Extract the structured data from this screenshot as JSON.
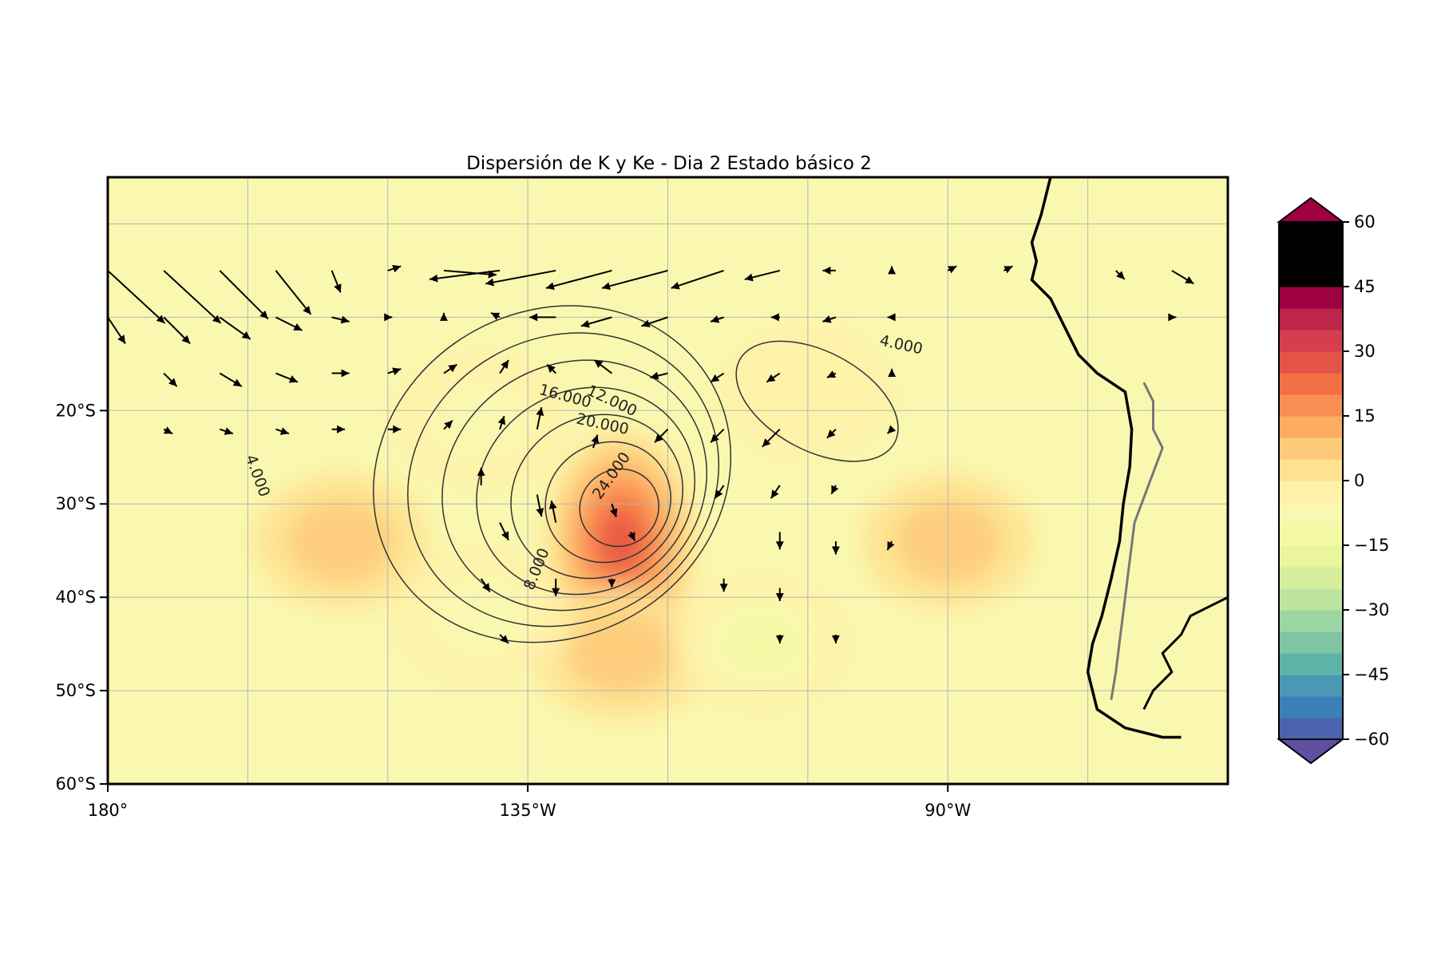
{
  "chart_data": {
    "type": "heatmap",
    "title": "Dispersión de K y Ke - Dia 2 Estado básico 2",
    "x_range": [
      -180,
      -60
    ],
    "y_range": [
      -60,
      5
    ],
    "x_ticks": [
      {
        "v": -180,
        "label": "180°"
      },
      {
        "v": -135,
        "label": "135°W"
      },
      {
        "v": -90,
        "label": "90°W"
      }
    ],
    "y_ticks": [
      {
        "v": -20,
        "label": "20°S"
      },
      {
        "v": -30,
        "label": "30°S"
      },
      {
        "v": -40,
        "label": "40°S"
      },
      {
        "v": -50,
        "label": "50°S"
      },
      {
        "v": -60,
        "label": "60°S"
      }
    ],
    "gridlines_lon": [
      -165,
      -150,
      -135,
      -120,
      -105,
      -90,
      -75
    ],
    "gridlines_lat": [
      0,
      -10,
      -20,
      -30,
      -40,
      -50
    ],
    "colorbar": {
      "min": -60,
      "max": 60,
      "step": 5,
      "extend": "both",
      "colormap": "Spectral_r",
      "tick_labels": [
        "60",
        "45",
        "30",
        "15",
        "0",
        "−15",
        "−30",
        "−45",
        "−60"
      ],
      "tick_values": [
        60,
        45,
        30,
        15,
        0,
        -15,
        -30,
        -45,
        -60
      ],
      "colors": [
        "#5e4fa2",
        "#4a65ad",
        "#3b80b9",
        "#4a98b3",
        "#5eb3a8",
        "#80c5a4",
        "#9dd5a3",
        "#bde5a0",
        "#d6ee9b",
        "#e9f69b",
        "#f3f9a4",
        "#faf8b0",
        "#fff1a8",
        "#fee291",
        "#fdcb7a",
        "#fdad60",
        "#f98e52",
        "#f36f44",
        "#e45446",
        "#d53e4f",
        "#bd254a",
        "#9e0142"
      ]
    },
    "filled_anomalies": [
      {
        "lon": -125,
        "lat": -34,
        "value": 32
      },
      {
        "lon": -125,
        "lat": -46,
        "value": 12
      },
      {
        "lon": -90,
        "lat": -34,
        "value": 14
      },
      {
        "lon": -155,
        "lat": -34,
        "value": 10
      },
      {
        "lon": -140,
        "lat": -21,
        "value": -11
      },
      {
        "lon": -110,
        "lat": -45,
        "value": -17
      },
      {
        "lon": -140,
        "lat": -42,
        "value": -14
      },
      {
        "lon": -105,
        "lat": -18,
        "value": -6
      }
    ],
    "contour_labels": [
      {
        "text": "4.000",
        "lon": -164,
        "lat": -27,
        "rot": 70
      },
      {
        "text": "4.000",
        "lon": -95,
        "lat": -13,
        "rot": 12
      },
      {
        "text": "8.000",
        "lon": -134,
        "lat": -37,
        "rot": -68
      },
      {
        "text": "12.000",
        "lon": -126,
        "lat": -19,
        "rot": 25
      },
      {
        "text": "16.000",
        "lon": -131,
        "lat": -18.5,
        "rot": 15
      },
      {
        "text": "20.000",
        "lon": -127,
        "lat": -21.5,
        "rot": 12
      },
      {
        "text": "24.000",
        "lon": -126,
        "lat": -27,
        "rot": -55
      }
    ],
    "contour_levels": [
      4,
      8,
      12,
      16,
      20,
      24,
      28
    ],
    "vectors": [
      {
        "lon": -180,
        "lat": -5,
        "u": 1.3,
        "v": -1.2
      },
      {
        "lon": -174,
        "lat": -5,
        "u": 1.3,
        "v": -1.2
      },
      {
        "lon": -168,
        "lat": -5,
        "u": 1.1,
        "v": -1.1
      },
      {
        "lon": -162,
        "lat": -5,
        "u": 0.8,
        "v": -1.0
      },
      {
        "lon": -156,
        "lat": -5,
        "u": 0.2,
        "v": -0.5
      },
      {
        "lon": -150,
        "lat": -5,
        "u": 0.3,
        "v": 0.1
      },
      {
        "lon": -144,
        "lat": -5,
        "u": 1.2,
        "v": -0.1
      },
      {
        "lon": -138,
        "lat": -5,
        "u": -1.6,
        "v": -0.2
      },
      {
        "lon": -132,
        "lat": -5,
        "u": -1.6,
        "v": -0.3
      },
      {
        "lon": -126,
        "lat": -5,
        "u": -1.5,
        "v": -0.4
      },
      {
        "lon": -120,
        "lat": -5,
        "u": -1.5,
        "v": -0.4
      },
      {
        "lon": -114,
        "lat": -5,
        "u": -1.2,
        "v": -0.4
      },
      {
        "lon": -108,
        "lat": -5,
        "u": -0.8,
        "v": -0.2
      },
      {
        "lon": -102,
        "lat": -5,
        "u": -0.3,
        "v": 0
      },
      {
        "lon": -96,
        "lat": -5,
        "u": 0,
        "v": 0.1
      },
      {
        "lon": -90,
        "lat": -5,
        "u": 0.2,
        "v": 0.1
      },
      {
        "lon": -84,
        "lat": -5,
        "u": 0.2,
        "v": 0.1
      },
      {
        "lon": -72,
        "lat": -5,
        "u": 0.2,
        "v": -0.2
      },
      {
        "lon": -66,
        "lat": -5,
        "u": 0.5,
        "v": -0.3
      },
      {
        "lon": -180,
        "lat": -10,
        "u": 0.4,
        "v": -0.6
      },
      {
        "lon": -174,
        "lat": -10,
        "u": 0.6,
        "v": -0.6
      },
      {
        "lon": -168,
        "lat": -10,
        "u": 0.7,
        "v": -0.5
      },
      {
        "lon": -162,
        "lat": -10,
        "u": 0.6,
        "v": -0.3
      },
      {
        "lon": -156,
        "lat": -10,
        "u": 0.4,
        "v": -0.1
      },
      {
        "lon": -150,
        "lat": -10,
        "u": 0.1,
        "v": 0
      },
      {
        "lon": -144,
        "lat": -10,
        "u": 0,
        "v": 0.1
      },
      {
        "lon": -138,
        "lat": -10,
        "u": -0.2,
        "v": 0.1
      },
      {
        "lon": -132,
        "lat": -10,
        "u": -0.6,
        "v": 0
      },
      {
        "lon": -126,
        "lat": -10,
        "u": -0.7,
        "v": -0.2
      },
      {
        "lon": -120,
        "lat": -10,
        "u": -0.6,
        "v": -0.2
      },
      {
        "lon": -114,
        "lat": -10,
        "u": -0.3,
        "v": -0.1
      },
      {
        "lon": -108,
        "lat": -10,
        "u": -0.2,
        "v": 0
      },
      {
        "lon": -102,
        "lat": -10,
        "u": -0.3,
        "v": -0.1
      },
      {
        "lon": -96,
        "lat": -10,
        "u": -0.1,
        "v": 0
      },
      {
        "lon": -66,
        "lat": -10,
        "u": 0.1,
        "v": 0
      },
      {
        "lon": -174,
        "lat": -16,
        "u": 0.3,
        "v": -0.3
      },
      {
        "lon": -168,
        "lat": -16,
        "u": 0.5,
        "v": -0.3
      },
      {
        "lon": -162,
        "lat": -16,
        "u": 0.5,
        "v": -0.2
      },
      {
        "lon": -156,
        "lat": -16,
        "u": 0.4,
        "v": 0
      },
      {
        "lon": -150,
        "lat": -16,
        "u": 0.3,
        "v": 0.1
      },
      {
        "lon": -144,
        "lat": -16,
        "u": 0.3,
        "v": 0.2
      },
      {
        "lon": -138,
        "lat": -16,
        "u": 0.2,
        "v": 0.3
      },
      {
        "lon": -132,
        "lat": -16,
        "u": -0.2,
        "v": 0.2
      },
      {
        "lon": -126,
        "lat": -16,
        "u": -0.4,
        "v": 0.3
      },
      {
        "lon": -120,
        "lat": -16,
        "u": -0.4,
        "v": -0.1
      },
      {
        "lon": -114,
        "lat": -16,
        "u": -0.3,
        "v": -0.2
      },
      {
        "lon": -108,
        "lat": -16,
        "u": -0.3,
        "v": -0.2
      },
      {
        "lon": -102,
        "lat": -16,
        "u": -0.2,
        "v": -0.1
      },
      {
        "lon": -96,
        "lat": -16,
        "u": 0,
        "v": 0.1
      },
      {
        "lon": -174,
        "lat": -22,
        "u": 0.2,
        "v": -0.1
      },
      {
        "lon": -168,
        "lat": -22,
        "u": 0.3,
        "v": -0.1
      },
      {
        "lon": -162,
        "lat": -22,
        "u": 0.3,
        "v": -0.1
      },
      {
        "lon": -156,
        "lat": -22,
        "u": 0.3,
        "v": 0
      },
      {
        "lon": -150,
        "lat": -22,
        "u": 0.3,
        "v": 0
      },
      {
        "lon": -144,
        "lat": -22,
        "u": 0.2,
        "v": 0.2
      },
      {
        "lon": -138,
        "lat": -22,
        "u": 0.1,
        "v": 0.3
      },
      {
        "lon": -134,
        "lat": -22,
        "u": 0.1,
        "v": 0.5
      },
      {
        "lon": -128,
        "lat": -24,
        "u": 0.1,
        "v": 0.3
      },
      {
        "lon": -120,
        "lat": -22,
        "u": -0.3,
        "v": -0.3
      },
      {
        "lon": -114,
        "lat": -22,
        "u": -0.3,
        "v": -0.3
      },
      {
        "lon": -108,
        "lat": -22,
        "u": -0.4,
        "v": -0.4
      },
      {
        "lon": -102,
        "lat": -22,
        "u": -0.2,
        "v": -0.2
      },
      {
        "lon": -96,
        "lat": -22,
        "u": -0.1,
        "v": -0.1
      },
      {
        "lon": -140,
        "lat": -28,
        "u": 0,
        "v": 0.4
      },
      {
        "lon": -134,
        "lat": -29,
        "u": 0.1,
        "v": -0.5
      },
      {
        "lon": -126,
        "lat": -30,
        "u": 0.1,
        "v": -0.3
      },
      {
        "lon": -114,
        "lat": -28,
        "u": -0.2,
        "v": -0.3
      },
      {
        "lon": -108,
        "lat": -28,
        "u": -0.2,
        "v": -0.3
      },
      {
        "lon": -102,
        "lat": -28,
        "u": -0.1,
        "v": -0.2
      },
      {
        "lon": -138,
        "lat": -32,
        "u": 0.2,
        "v": -0.4
      },
      {
        "lon": -132,
        "lat": -32,
        "u": -0.1,
        "v": 0.5
      },
      {
        "lon": -124,
        "lat": -33,
        "u": 0.1,
        "v": -0.2
      },
      {
        "lon": -108,
        "lat": -33,
        "u": 0,
        "v": -0.4
      },
      {
        "lon": -102,
        "lat": -34,
        "u": 0,
        "v": -0.3
      },
      {
        "lon": -132,
        "lat": -38,
        "u": 0,
        "v": -0.4
      },
      {
        "lon": -126,
        "lat": -38,
        "u": 0,
        "v": -0.2
      },
      {
        "lon": -114,
        "lat": -38,
        "u": 0,
        "v": -0.3
      },
      {
        "lon": -108,
        "lat": -39,
        "u": 0,
        "v": -0.3
      },
      {
        "lon": -96,
        "lat": -34,
        "u": -0.1,
        "v": -0.2
      },
      {
        "lon": -140,
        "lat": -38,
        "u": 0.2,
        "v": -0.3
      },
      {
        "lon": -138,
        "lat": -44,
        "u": 0.2,
        "v": -0.2
      },
      {
        "lon": -102,
        "lat": -44,
        "u": 0,
        "v": -0.2
      },
      {
        "lon": -108,
        "lat": -44,
        "u": 0,
        "v": -0.2
      }
    ]
  }
}
